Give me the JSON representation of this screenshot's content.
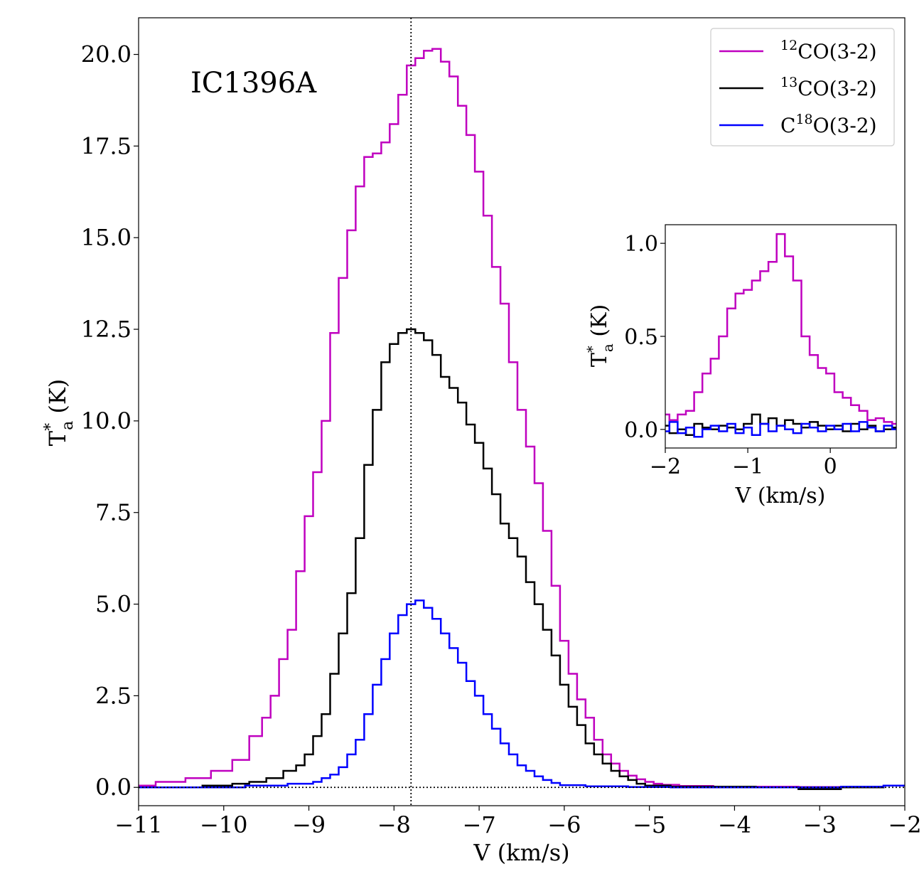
{
  "chart_data": [
    {
      "type": "line",
      "step": true,
      "title": "IC1396A",
      "xlabel": "V (km/s)",
      "ylabel_main": "T",
      "ylabel_sup": "*",
      "ylabel_sub": "a",
      "ylabel_unit": " (K)",
      "xlim": [
        -11,
        -2
      ],
      "ylim": [
        -0.5,
        21
      ],
      "xticks": [
        -11,
        -10,
        -9,
        -8,
        -7,
        -6,
        -5,
        -4,
        -3,
        -2
      ],
      "xtick_labels": [
        "−11",
        "−10",
        "−9",
        "−8",
        "−7",
        "−6",
        "−5",
        "−4",
        "−3",
        "−2"
      ],
      "yticks": [
        0,
        2.5,
        5,
        7.5,
        10,
        12.5,
        15,
        17.5,
        20
      ],
      "ytick_labels": [
        "0.0",
        "2.5",
        "5.0",
        "7.5",
        "10.0",
        "12.5",
        "15.0",
        "17.5",
        "20.0"
      ],
      "vline_x": -7.8,
      "hline_y": 0,
      "legend_position": "top-right",
      "series": [
        {
          "name": "12CO(3-2)",
          "legend_sup": "12",
          "legend_text": "CO(3-2)",
          "legend_pre": "",
          "color": "#bf00bf",
          "points": [
            [
              -11.0,
              0.05
            ],
            [
              -10.6,
              0.15
            ],
            [
              -10.3,
              0.25
            ],
            [
              -10.0,
              0.45
            ],
            [
              -9.8,
              0.75
            ],
            [
              -9.6,
              1.4
            ],
            [
              -9.5,
              1.9
            ],
            [
              -9.4,
              2.5
            ],
            [
              -9.3,
              3.5
            ],
            [
              -9.2,
              4.3
            ],
            [
              -9.1,
              5.9
            ],
            [
              -9.0,
              7.4
            ],
            [
              -8.9,
              8.6
            ],
            [
              -8.8,
              10.0
            ],
            [
              -8.7,
              12.4
            ],
            [
              -8.6,
              13.9
            ],
            [
              -8.5,
              15.2
            ],
            [
              -8.4,
              16.4
            ],
            [
              -8.3,
              17.2
            ],
            [
              -8.2,
              17.3
            ],
            [
              -8.1,
              17.6
            ],
            [
              -8.0,
              18.1
            ],
            [
              -7.9,
              18.9
            ],
            [
              -7.8,
              19.7
            ],
            [
              -7.7,
              19.9
            ],
            [
              -7.6,
              20.1
            ],
            [
              -7.5,
              20.15
            ],
            [
              -7.4,
              19.8
            ],
            [
              -7.3,
              19.4
            ],
            [
              -7.2,
              18.6
            ],
            [
              -7.1,
              17.8
            ],
            [
              -7.0,
              16.8
            ],
            [
              -6.9,
              15.6
            ],
            [
              -6.8,
              14.2
            ],
            [
              -6.7,
              13.2
            ],
            [
              -6.6,
              11.6
            ],
            [
              -6.5,
              10.3
            ],
            [
              -6.4,
              9.3
            ],
            [
              -6.3,
              8.3
            ],
            [
              -6.2,
              7.0
            ],
            [
              -6.1,
              5.5
            ],
            [
              -6.0,
              4.0
            ],
            [
              -5.9,
              3.1
            ],
            [
              -5.8,
              2.4
            ],
            [
              -5.7,
              1.9
            ],
            [
              -5.6,
              1.3
            ],
            [
              -5.5,
              0.9
            ],
            [
              -5.4,
              0.65
            ],
            [
              -5.3,
              0.45
            ],
            [
              -5.2,
              0.32
            ],
            [
              -5.1,
              0.22
            ],
            [
              -5.0,
              0.15
            ],
            [
              -4.9,
              0.1
            ],
            [
              -4.8,
              0.07
            ],
            [
              -4.5,
              0.04
            ],
            [
              -4.0,
              0.02
            ],
            [
              -3.5,
              0.02
            ],
            [
              -3.0,
              0.01
            ],
            [
              -2.5,
              0.0
            ],
            [
              -2.0,
              0.05
            ]
          ]
        },
        {
          "name": "13CO(3-2)",
          "legend_sup": "13",
          "legend_text": "CO(3-2)",
          "legend_pre": "",
          "color": "#000000",
          "points": [
            [
              -11.0,
              0.0
            ],
            [
              -10.5,
              0.0
            ],
            [
              -10.0,
              0.05
            ],
            [
              -9.8,
              0.1
            ],
            [
              -9.6,
              0.15
            ],
            [
              -9.4,
              0.25
            ],
            [
              -9.2,
              0.45
            ],
            [
              -9.1,
              0.6
            ],
            [
              -9.0,
              0.9
            ],
            [
              -8.9,
              1.4
            ],
            [
              -8.8,
              2.0
            ],
            [
              -8.7,
              3.1
            ],
            [
              -8.6,
              4.2
            ],
            [
              -8.5,
              5.3
            ],
            [
              -8.4,
              6.8
            ],
            [
              -8.3,
              8.8
            ],
            [
              -8.2,
              10.3
            ],
            [
              -8.1,
              11.6
            ],
            [
              -8.0,
              12.1
            ],
            [
              -7.9,
              12.4
            ],
            [
              -7.8,
              12.5
            ],
            [
              -7.7,
              12.4
            ],
            [
              -7.6,
              12.2
            ],
            [
              -7.5,
              11.8
            ],
            [
              -7.4,
              11.2
            ],
            [
              -7.3,
              10.9
            ],
            [
              -7.2,
              10.5
            ],
            [
              -7.1,
              9.9
            ],
            [
              -7.0,
              9.4
            ],
            [
              -6.9,
              8.7
            ],
            [
              -6.8,
              8.0
            ],
            [
              -6.7,
              7.2
            ],
            [
              -6.6,
              6.8
            ],
            [
              -6.5,
              6.3
            ],
            [
              -6.4,
              5.6
            ],
            [
              -6.3,
              5.0
            ],
            [
              -6.2,
              4.3
            ],
            [
              -6.1,
              3.6
            ],
            [
              -6.0,
              2.8
            ],
            [
              -5.9,
              2.2
            ],
            [
              -5.8,
              1.7
            ],
            [
              -5.7,
              1.2
            ],
            [
              -5.6,
              0.9
            ],
            [
              -5.5,
              0.65
            ],
            [
              -5.4,
              0.45
            ],
            [
              -5.3,
              0.3
            ],
            [
              -5.2,
              0.2
            ],
            [
              -5.1,
              0.1
            ],
            [
              -5.0,
              0.05
            ],
            [
              -4.5,
              0.02
            ],
            [
              -4.0,
              0.02
            ],
            [
              -3.5,
              0.0
            ],
            [
              -3.0,
              -0.05
            ],
            [
              -2.5,
              0.0
            ],
            [
              -2.0,
              0.05
            ]
          ]
        },
        {
          "name": "C18O(3-2)",
          "legend_sup": "18",
          "legend_text": "O(3-2)",
          "legend_pre": "C",
          "color": "#0000ff",
          "points": [
            [
              -11.0,
              0.0
            ],
            [
              -10.0,
              0.0
            ],
            [
              -9.5,
              0.05
            ],
            [
              -9.0,
              0.1
            ],
            [
              -8.9,
              0.15
            ],
            [
              -8.8,
              0.25
            ],
            [
              -8.7,
              0.35
            ],
            [
              -8.6,
              0.55
            ],
            [
              -8.5,
              0.9
            ],
            [
              -8.4,
              1.3
            ],
            [
              -8.3,
              2.0
            ],
            [
              -8.2,
              2.8
            ],
            [
              -8.1,
              3.5
            ],
            [
              -8.0,
              4.2
            ],
            [
              -7.9,
              4.7
            ],
            [
              -7.8,
              5.0
            ],
            [
              -7.7,
              5.1
            ],
            [
              -7.6,
              4.9
            ],
            [
              -7.5,
              4.6
            ],
            [
              -7.4,
              4.2
            ],
            [
              -7.3,
              3.8
            ],
            [
              -7.2,
              3.4
            ],
            [
              -7.1,
              2.9
            ],
            [
              -7.0,
              2.5
            ],
            [
              -6.9,
              2.0
            ],
            [
              -6.8,
              1.6
            ],
            [
              -6.7,
              1.2
            ],
            [
              -6.6,
              0.9
            ],
            [
              -6.5,
              0.6
            ],
            [
              -6.4,
              0.45
            ],
            [
              -6.3,
              0.3
            ],
            [
              -6.2,
              0.2
            ],
            [
              -6.1,
              0.12
            ],
            [
              -6.0,
              0.06
            ],
            [
              -5.5,
              0.03
            ],
            [
              -5.0,
              0.01
            ],
            [
              -4.5,
              0.0
            ],
            [
              -4.0,
              0.0
            ],
            [
              -3.0,
              0.0
            ],
            [
              -2.5,
              0.02
            ],
            [
              -2.0,
              0.05
            ]
          ]
        }
      ]
    },
    {
      "type": "line",
      "step": true,
      "title": "",
      "xlabel": "V (km/s)",
      "ylabel_main": "T",
      "ylabel_sup": "*",
      "ylabel_sub": "a",
      "ylabel_unit": " (K)",
      "xlim": [
        -2,
        0.8
      ],
      "ylim": [
        -0.1,
        1.1
      ],
      "xticks": [
        -2,
        -1,
        0
      ],
      "xtick_labels": [
        "−2",
        "−1",
        "0"
      ],
      "yticks": [
        0,
        0.5,
        1
      ],
      "ytick_labels": [
        "0.0",
        "0.5",
        "1.0"
      ],
      "series": [
        {
          "name": "12CO(3-2)",
          "color": "#bf00bf",
          "points": [
            [
              -2.0,
              0.08
            ],
            [
              -1.9,
              0.05
            ],
            [
              -1.8,
              0.08
            ],
            [
              -1.7,
              0.1
            ],
            [
              -1.6,
              0.2
            ],
            [
              -1.5,
              0.3
            ],
            [
              -1.4,
              0.38
            ],
            [
              -1.3,
              0.5
            ],
            [
              -1.2,
              0.65
            ],
            [
              -1.1,
              0.73
            ],
            [
              -1.0,
              0.75
            ],
            [
              -0.9,
              0.8
            ],
            [
              -0.8,
              0.85
            ],
            [
              -0.7,
              0.9
            ],
            [
              -0.6,
              1.05
            ],
            [
              -0.5,
              0.93
            ],
            [
              -0.4,
              0.8
            ],
            [
              -0.3,
              0.5
            ],
            [
              -0.2,
              0.4
            ],
            [
              -0.1,
              0.33
            ],
            [
              0.0,
              0.3
            ],
            [
              0.1,
              0.2
            ],
            [
              0.2,
              0.17
            ],
            [
              0.3,
              0.13
            ],
            [
              0.4,
              0.1
            ],
            [
              0.5,
              0.05
            ],
            [
              0.6,
              0.06
            ],
            [
              0.7,
              0.04
            ],
            [
              0.8,
              0.03
            ]
          ]
        },
        {
          "name": "13CO(3-2)",
          "color": "#000000",
          "points": [
            [
              -2.0,
              0.02
            ],
            [
              -1.9,
              -0.02
            ],
            [
              -1.8,
              0.0
            ],
            [
              -1.7,
              -0.03
            ],
            [
              -1.6,
              0.03
            ],
            [
              -1.5,
              0.01
            ],
            [
              -1.4,
              0.0
            ],
            [
              -1.3,
              0.02
            ],
            [
              -1.2,
              0.01
            ],
            [
              -1.1,
              0.0
            ],
            [
              -1.0,
              0.03
            ],
            [
              -0.9,
              0.08
            ],
            [
              -0.8,
              0.03
            ],
            [
              -0.7,
              0.06
            ],
            [
              -0.6,
              0.02
            ],
            [
              -0.5,
              0.05
            ],
            [
              -0.4,
              0.03
            ],
            [
              -0.3,
              0.01
            ],
            [
              -0.2,
              0.04
            ],
            [
              -0.1,
              0.02
            ],
            [
              0.0,
              0.0
            ],
            [
              0.1,
              0.02
            ],
            [
              0.2,
              -0.01
            ],
            [
              0.3,
              0.03
            ],
            [
              0.4,
              0.0
            ],
            [
              0.5,
              0.02
            ],
            [
              0.6,
              -0.01
            ],
            [
              0.7,
              0.0
            ],
            [
              0.8,
              0.01
            ]
          ]
        },
        {
          "name": "C18O(3-2)",
          "color": "#0000ff",
          "points": [
            [
              -2.0,
              -0.01
            ],
            [
              -1.9,
              0.04
            ],
            [
              -1.8,
              -0.02
            ],
            [
              -1.7,
              0.01
            ],
            [
              -1.6,
              -0.04
            ],
            [
              -1.5,
              0.0
            ],
            [
              -1.4,
              0.02
            ],
            [
              -1.3,
              -0.01
            ],
            [
              -1.2,
              0.03
            ],
            [
              -1.1,
              -0.02
            ],
            [
              -1.0,
              0.01
            ],
            [
              -0.9,
              -0.03
            ],
            [
              -0.8,
              0.03
            ],
            [
              -0.7,
              -0.01
            ],
            [
              -0.6,
              0.02
            ],
            [
              -0.5,
              0.0
            ],
            [
              -0.4,
              -0.02
            ],
            [
              -0.3,
              0.03
            ],
            [
              -0.2,
              0.01
            ],
            [
              -0.1,
              -0.01
            ],
            [
              0.0,
              0.02
            ],
            [
              0.1,
              0.0
            ],
            [
              0.2,
              0.03
            ],
            [
              0.3,
              -0.01
            ],
            [
              0.4,
              0.04
            ],
            [
              0.5,
              0.01
            ],
            [
              0.6,
              -0.01
            ],
            [
              0.7,
              0.02
            ],
            [
              0.8,
              0.0
            ]
          ]
        }
      ]
    }
  ]
}
